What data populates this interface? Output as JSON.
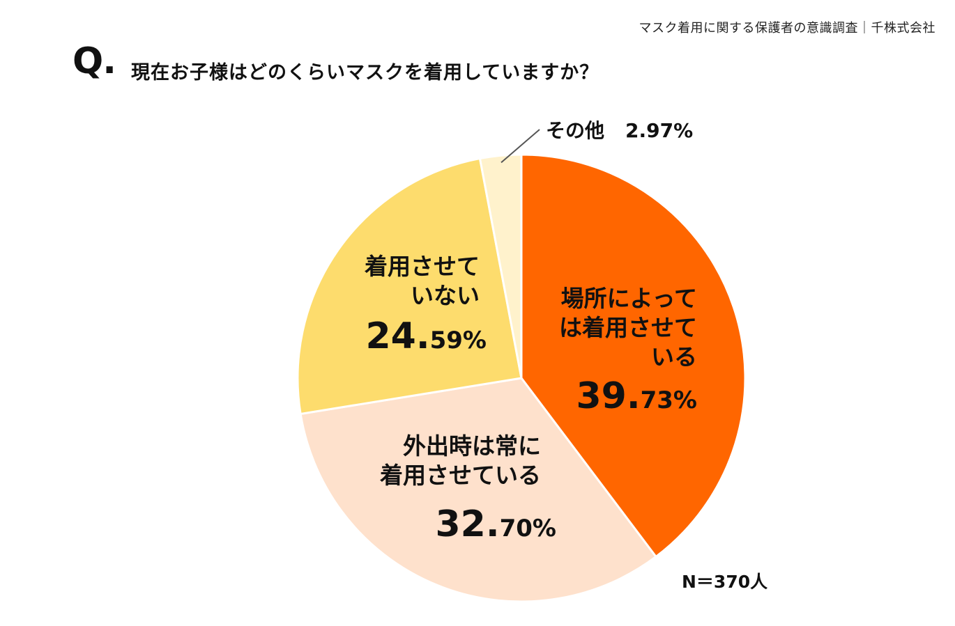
{
  "source": "マスク着用に関する保護者の意識調査｜千株式会社",
  "q_mark": "Q.",
  "question": "現在お子様はどのくらいマスクを着用していますか？",
  "n_label": "N＝370人",
  "colors": {
    "slice1": "#FF6600",
    "slice2": "#FEE1CC",
    "slice3": "#FDDC6D",
    "slice4": "#FFF2CC"
  },
  "chart_data": {
    "type": "pie",
    "title": "現在お子様はどのくらいマスクを着用していますか？",
    "slices": [
      {
        "label_lines": [
          "場所によって",
          "は着用させて",
          "いる"
        ],
        "value": 39.73,
        "pct_big": "39.",
        "pct_small": "73%",
        "color": "#FF6600"
      },
      {
        "label_lines": [
          "外出時は常に",
          "着用させている"
        ],
        "value": 32.7,
        "pct_big": "32.",
        "pct_small": "70%",
        "color": "#FEE1CC"
      },
      {
        "label_lines": [
          "着用させて",
          "いない"
        ],
        "value": 24.59,
        "pct_big": "24.",
        "pct_small": "59%",
        "color": "#FDDC6D"
      },
      {
        "label_lines": [
          "その他"
        ],
        "value": 2.97,
        "pct_text": "2.97%",
        "color": "#FFF2CC"
      }
    ]
  }
}
